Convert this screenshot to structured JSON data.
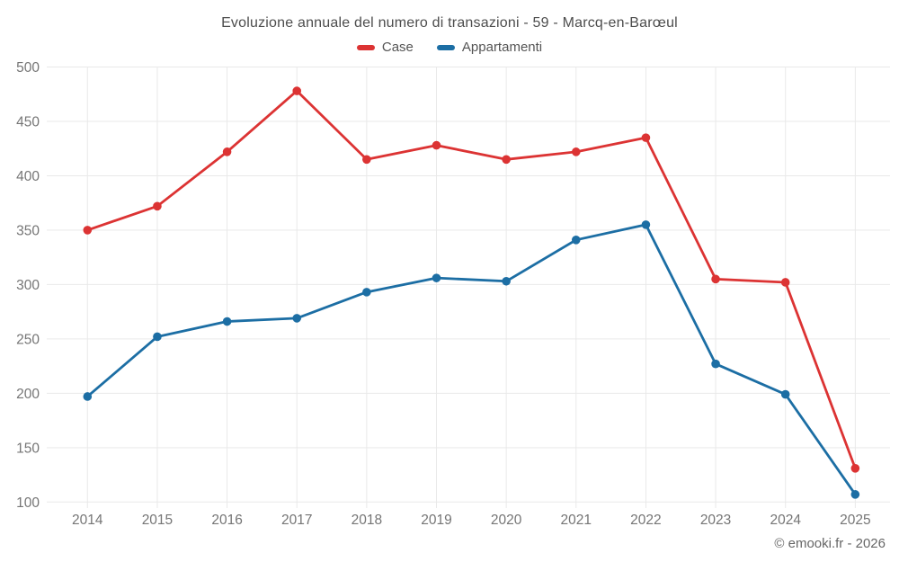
{
  "title": "Evoluzione annuale del numero di transazioni - 59 - Marcq-en-Barœul",
  "legend": [
    {
      "label": "Case",
      "color": "#dc3333"
    },
    {
      "label": "Appartamenti",
      "color": "#1c6ea4"
    }
  ],
  "footer": "© emooki.fr - 2026",
  "colors": {
    "grid": "#e9e9e9",
    "tick_text": "#757575",
    "title_text": "#4d4d4d",
    "background": "#ffffff"
  },
  "chart_data": {
    "type": "line",
    "title": "Evoluzione annuale del numero di transazioni - 59 - Marcq-en-Barœul",
    "xlabel": "",
    "ylabel": "",
    "categories": [
      "2014",
      "2015",
      "2016",
      "2017",
      "2018",
      "2019",
      "2020",
      "2021",
      "2022",
      "2023",
      "2024",
      "2025"
    ],
    "yticks": [
      100,
      150,
      200,
      250,
      300,
      350,
      400,
      450,
      500
    ],
    "ylim": [
      100,
      500
    ],
    "grid": true,
    "legend_position": "top",
    "series": [
      {
        "name": "Case",
        "color": "#dc3333",
        "values": [
          350,
          372,
          422,
          478,
          415,
          428,
          415,
          422,
          435,
          305,
          302,
          131
        ]
      },
      {
        "name": "Appartamenti",
        "color": "#1c6ea4",
        "values": [
          197,
          252,
          266,
          269,
          293,
          306,
          303,
          341,
          355,
          227,
          199,
          107
        ]
      }
    ]
  }
}
